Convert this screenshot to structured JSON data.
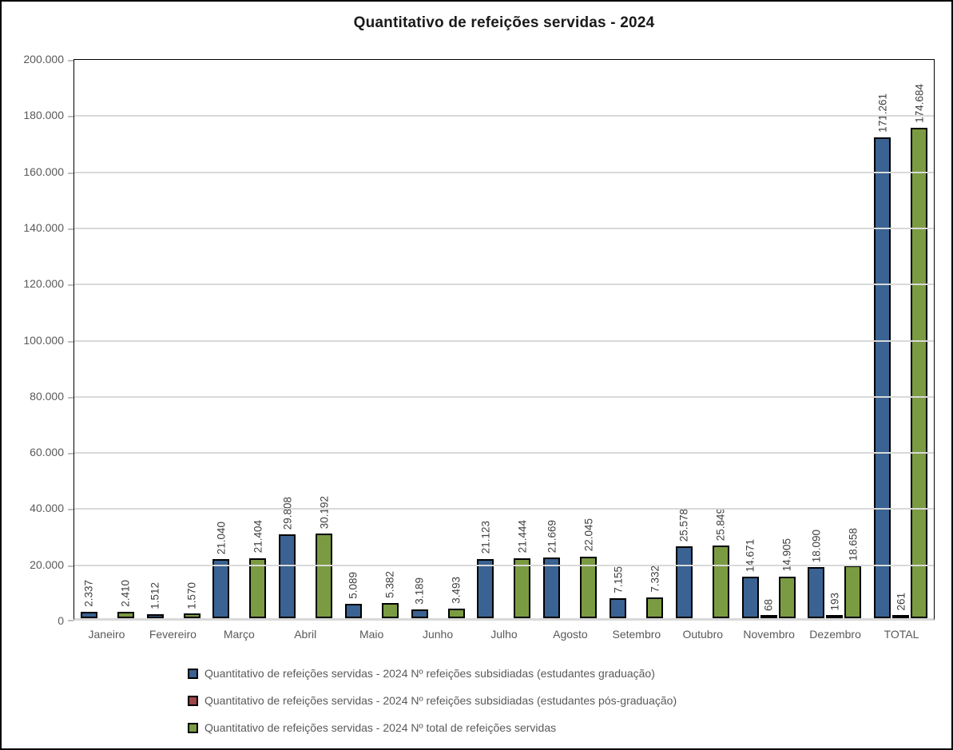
{
  "chart_data": {
    "type": "bar",
    "title": "Quantitativo de refeições servidas - 2024",
    "categories": [
      "Janeiro",
      "Fevereiro",
      "Março",
      "Abril",
      "Maio",
      "Junho",
      "Julho",
      "Agosto",
      "Setembro",
      "Outubro",
      "Novembro",
      "Dezembro",
      "TOTAL"
    ],
    "series": [
      {
        "name": "Quantitativo de refeições servidas - 2024 Nº refeições subsidiadas (estudantes graduação)",
        "color": "#3a6292",
        "values": [
          2337,
          1512,
          21040,
          29808,
          5089,
          3189,
          21123,
          21669,
          7155,
          25578,
          14671,
          18090,
          171261
        ]
      },
      {
        "name": "Quantitativo de refeições servidas - 2024 Nº refeições subsidiadas (estudantes pós-graduação)",
        "color": "#9e4547",
        "values": [
          0,
          0,
          0,
          0,
          0,
          0,
          0,
          0,
          0,
          0,
          68,
          193,
          261
        ]
      },
      {
        "name": "Quantitativo de refeições servidas - 2024 Nº total de refeições servidas",
        "color": "#7b9b42",
        "values": [
          2410,
          1570,
          21404,
          30192,
          5382,
          3493,
          21444,
          22045,
          7332,
          25849,
          14905,
          18658,
          174684
        ]
      }
    ],
    "ylim": [
      0,
      200000
    ],
    "ytick_step": 20000,
    "ytick_labels": [
      "200.000",
      "180.000",
      "160.000",
      "140.000",
      "120.000",
      "100.000",
      "80.000",
      "60.000",
      "40.000",
      "20.000",
      "0"
    ],
    "grid": true,
    "legend_position": "bottom",
    "data_labels": "rotated 90°, thousands separated by dot, hidden for zero values",
    "bar_border_color": "#000000",
    "gridline_color": "#d9d9d9",
    "axis_text_color": "#595959"
  }
}
